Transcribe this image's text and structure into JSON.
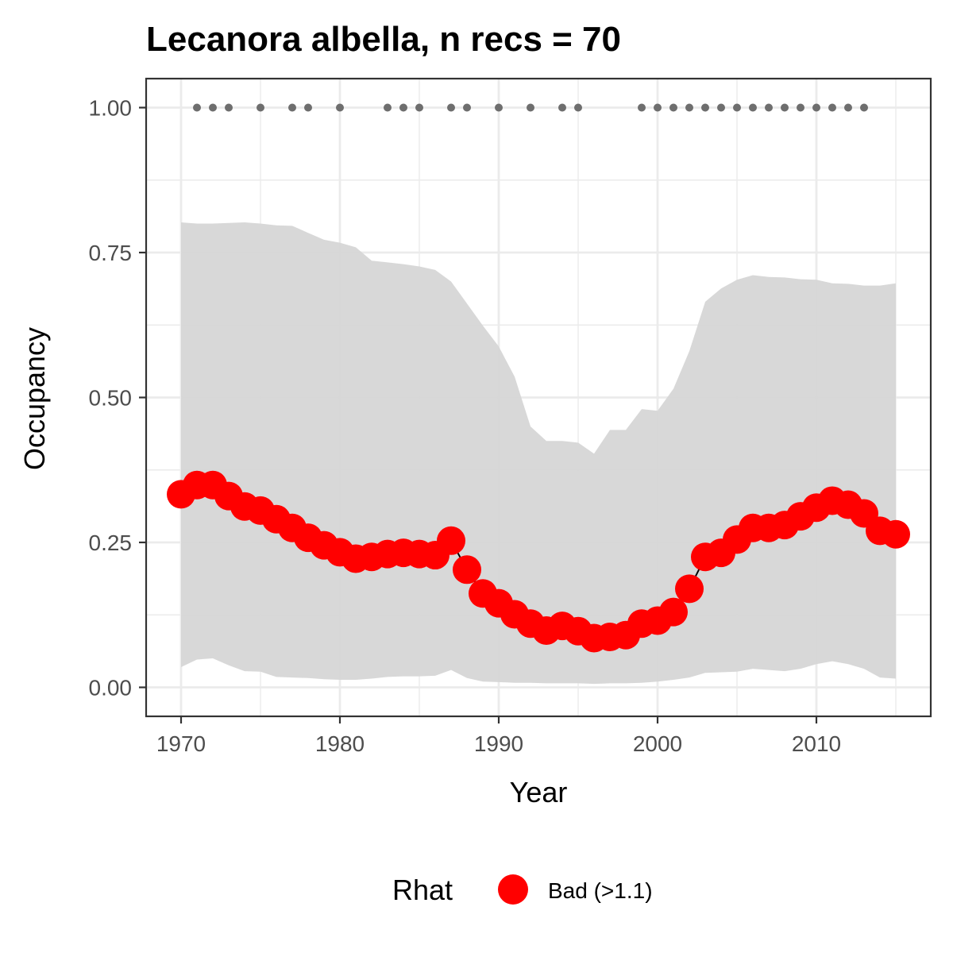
{
  "chart_data": {
    "type": "line",
    "title": "Lecanora albella, n recs = 70",
    "xlabel": "Year",
    "ylabel": "Occupancy",
    "xlim": [
      1967.8,
      2017.2
    ],
    "ylim": [
      -0.05,
      1.05
    ],
    "x_ticks": [
      1970,
      1980,
      1990,
      2000,
      2010
    ],
    "x_tick_labels": [
      "1970",
      "1980",
      "1990",
      "2000",
      "2010"
    ],
    "y_ticks": [
      0,
      0.25,
      0.5,
      0.75,
      1
    ],
    "y_tick_labels": [
      "0.00",
      "0.25",
      "0.50",
      "0.75",
      "1.00"
    ],
    "x_minor_ticks": [
      1975,
      1985,
      1995,
      2005,
      2015
    ],
    "y_minor_ticks": [
      0.125,
      0.375,
      0.625,
      0.875
    ],
    "grid": true,
    "legend": {
      "title": "Rhat",
      "position": "bottom",
      "entries": [
        {
          "label": "Bad (>1.1)",
          "color": "#ff0000"
        }
      ]
    },
    "colors": {
      "points": "#ff0000",
      "ribbon": "#d6d6d6",
      "records": "#6e6e6e",
      "line": "#000000",
      "panel_border": "#333333",
      "grid": "#ebebeb"
    },
    "years": [
      1970,
      1971,
      1972,
      1973,
      1974,
      1975,
      1976,
      1977,
      1978,
      1979,
      1980,
      1981,
      1982,
      1983,
      1984,
      1985,
      1986,
      1987,
      1988,
      1989,
      1990,
      1991,
      1992,
      1993,
      1994,
      1995,
      1996,
      1997,
      1998,
      1999,
      2000,
      2001,
      2002,
      2003,
      2004,
      2005,
      2006,
      2007,
      2008,
      2009,
      2010,
      2011,
      2012,
      2013,
      2014,
      2015
    ],
    "series": [
      {
        "name": "Occupancy",
        "rhat": "Bad (>1.1)",
        "values": [
          0.333,
          0.349,
          0.349,
          0.33,
          0.312,
          0.305,
          0.29,
          0.275,
          0.258,
          0.245,
          0.233,
          0.222,
          0.225,
          0.23,
          0.232,
          0.23,
          0.228,
          0.253,
          0.203,
          0.162,
          0.145,
          0.126,
          0.11,
          0.098,
          0.106,
          0.097,
          0.085,
          0.087,
          0.09,
          0.11,
          0.115,
          0.13,
          0.17,
          0.225,
          0.232,
          0.255,
          0.275,
          0.275,
          0.28,
          0.295,
          0.31,
          0.322,
          0.315,
          0.3,
          0.27,
          0.264
        ]
      }
    ],
    "ribbon": {
      "upper": [
        0.802,
        0.8,
        0.8,
        0.801,
        0.802,
        0.8,
        0.797,
        0.796,
        0.784,
        0.772,
        0.767,
        0.759,
        0.736,
        0.733,
        0.73,
        0.726,
        0.72,
        0.7,
        0.662,
        0.624,
        0.588,
        0.536,
        0.45,
        0.425,
        0.425,
        0.422,
        0.403,
        0.444,
        0.444,
        0.48,
        0.477,
        0.515,
        0.58,
        0.665,
        0.688,
        0.703,
        0.711,
        0.708,
        0.707,
        0.704,
        0.703,
        0.697,
        0.696,
        0.693,
        0.693,
        0.697
      ],
      "lower": [
        0.035,
        0.048,
        0.05,
        0.038,
        0.028,
        0.027,
        0.018,
        0.017,
        0.016,
        0.014,
        0.013,
        0.013,
        0.015,
        0.018,
        0.019,
        0.019,
        0.02,
        0.03,
        0.016,
        0.01,
        0.009,
        0.008,
        0.008,
        0.007,
        0.007,
        0.007,
        0.006,
        0.007,
        0.007,
        0.008,
        0.01,
        0.013,
        0.017,
        0.025,
        0.026,
        0.027,
        0.032,
        0.03,
        0.028,
        0.032,
        0.04,
        0.045,
        0.04,
        0.032,
        0.017,
        0.015
      ]
    },
    "record_years": [
      1971,
      1972,
      1973,
      1975,
      1977,
      1978,
      1980,
      1983,
      1984,
      1985,
      1987,
      1988,
      1990,
      1992,
      1994,
      1995,
      1999,
      2000,
      2001,
      2002,
      2003,
      2004,
      2005,
      2006,
      2007,
      2008,
      2009,
      2010,
      2011,
      2012,
      2013
    ],
    "record_value": 1
  }
}
